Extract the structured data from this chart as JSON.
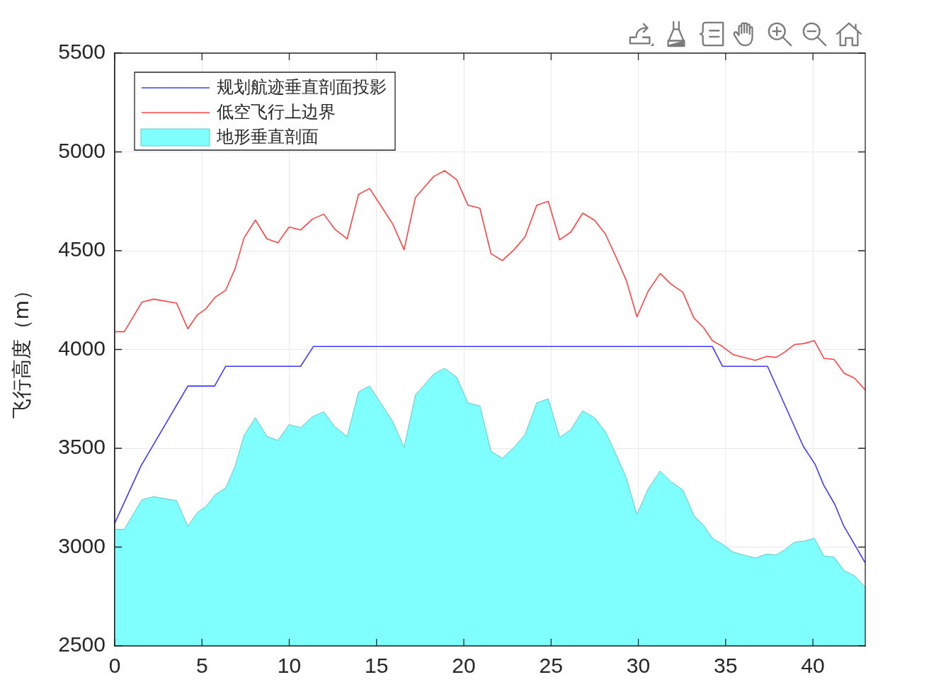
{
  "chart_data": {
    "type": "line",
    "ylabel": "飞行高度（m）",
    "xlim": [
      0,
      43
    ],
    "xticks": [
      0,
      5,
      10,
      15,
      20,
      25,
      30,
      35,
      40
    ],
    "ylim": [
      2500,
      5500
    ],
    "yticks": [
      2500,
      3000,
      3500,
      4000,
      4500,
      5000,
      5500
    ],
    "grid": true,
    "legend": "top left",
    "series": [
      {
        "name": "规划航迹垂直剖面投影",
        "color": "#3c3cff",
        "x": [
          0,
          1.5,
          4.19,
          5.72,
          6.36,
          10.65,
          11.38,
          34.24,
          34.82,
          37.4,
          39.45,
          40.12,
          40.61,
          41.26,
          41.75,
          43
        ],
        "values": [
          3120,
          3410,
          3815,
          3815,
          3915,
          3915,
          4015,
          4015,
          3915,
          3915,
          3510,
          3420,
          3315,
          3215,
          3110,
          2920
        ]
      },
      {
        "name": "低空飞行上边界",
        "color": "#ff4444",
        "x": [
          0,
          0.55,
          1.56,
          2.23,
          3.54,
          4.19,
          4.73,
          5.22,
          5.76,
          6.36,
          6.9,
          7.41,
          8.06,
          8.72,
          9.35,
          9.99,
          10.66,
          11.33,
          11.98,
          12.6,
          13.32,
          13.97,
          14.6,
          15.27,
          15.93,
          16.58,
          17.23,
          17.63,
          18.27,
          18.9,
          19.59,
          20.24,
          20.92,
          21.56,
          22.21,
          22.88,
          23.51,
          24.18,
          24.84,
          25.49,
          26.14,
          26.81,
          27.48,
          28.11,
          28.71,
          29.31,
          29.92,
          30.56,
          31.25,
          31.88,
          32.55,
          33.18,
          33.74,
          34.24,
          34.82,
          35.41,
          36.04,
          36.7,
          37.37,
          37.89,
          38.36,
          38.94,
          39.49,
          40.08,
          40.63,
          41.21,
          41.79,
          42.39,
          43
        ],
        "values": [
          4090,
          4090,
          4240,
          4255,
          4235,
          4105,
          4175,
          4205,
          4265,
          4300,
          4410,
          4565,
          4655,
          4560,
          4540,
          4620,
          4605,
          4660,
          4685,
          4610,
          4560,
          4785,
          4815,
          4725,
          4635,
          4505,
          4770,
          4810,
          4875,
          4905,
          4860,
          4730,
          4715,
          4485,
          4450,
          4505,
          4570,
          4730,
          4750,
          4555,
          4595,
          4690,
          4655,
          4585,
          4470,
          4350,
          4165,
          4295,
          4385,
          4330,
          4290,
          4160,
          4110,
          4045,
          4015,
          3975,
          3960,
          3945,
          3965,
          3960,
          3985,
          4025,
          4030,
          4045,
          3955,
          3950,
          3880,
          3855,
          3795
        ]
      },
      {
        "name": "地形垂直剖面",
        "type": "area",
        "color": "#80ffff",
        "x": [
          0,
          0.55,
          1.56,
          2.23,
          3.54,
          4.19,
          4.73,
          5.22,
          5.76,
          6.36,
          6.9,
          7.41,
          8.06,
          8.72,
          9.35,
          9.99,
          10.66,
          11.33,
          11.98,
          12.6,
          13.32,
          13.97,
          14.6,
          15.27,
          15.93,
          16.58,
          17.23,
          17.63,
          18.27,
          18.9,
          19.59,
          20.24,
          20.92,
          21.56,
          22.21,
          22.88,
          23.51,
          24.18,
          24.84,
          25.49,
          26.14,
          26.81,
          27.48,
          28.11,
          28.71,
          29.31,
          29.92,
          30.56,
          31.25,
          31.88,
          32.55,
          33.18,
          33.74,
          34.24,
          34.82,
          35.41,
          36.04,
          36.7,
          37.37,
          37.89,
          38.36,
          38.94,
          39.49,
          40.08,
          40.63,
          41.21,
          41.79,
          42.39,
          43
        ],
        "values": [
          3090,
          3090,
          3240,
          3255,
          3235,
          3105,
          3175,
          3205,
          3265,
          3300,
          3410,
          3565,
          3655,
          3560,
          3540,
          3620,
          3605,
          3660,
          3685,
          3610,
          3560,
          3785,
          3815,
          3725,
          3635,
          3505,
          3770,
          3810,
          3875,
          3905,
          3860,
          3730,
          3715,
          3485,
          3450,
          3505,
          3570,
          3730,
          3750,
          3555,
          3595,
          3690,
          3655,
          3585,
          3470,
          3350,
          3165,
          3295,
          3385,
          3330,
          3290,
          3160,
          3110,
          3045,
          3015,
          2975,
          2960,
          2945,
          2965,
          2960,
          2985,
          3025,
          3030,
          3045,
          2955,
          2950,
          2880,
          2855,
          2795
        ]
      }
    ]
  }
}
